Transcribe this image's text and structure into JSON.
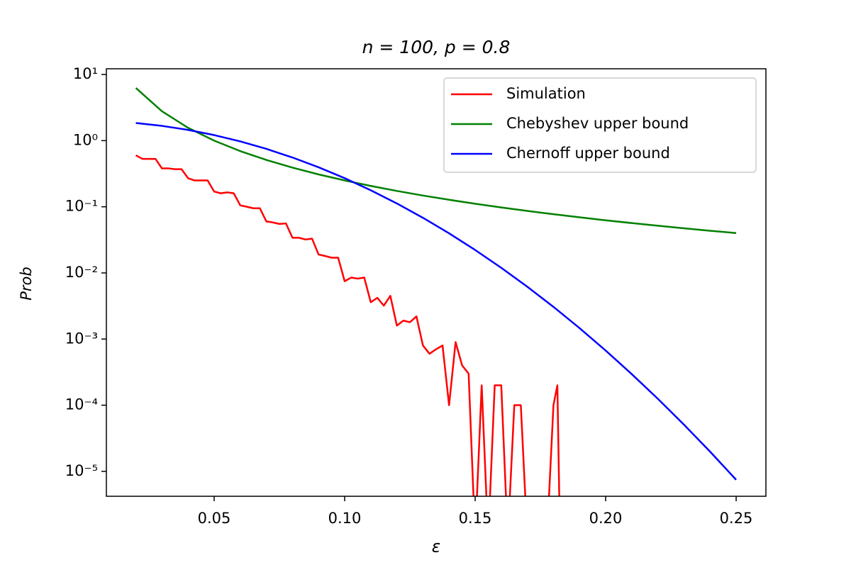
{
  "chart_data": {
    "type": "line",
    "title": "n = 100, p = 0.8",
    "x_label": "ε",
    "y_label": "Prob",
    "log_y": true,
    "legend": "upper right",
    "xlim": [
      0.0087,
      0.2614
    ],
    "xticks": [
      {
        "value": 0.05,
        "label": "0.05"
      },
      {
        "value": 0.1,
        "label": "0.10"
      },
      {
        "value": 0.15,
        "label": "0.15"
      },
      {
        "value": 0.2,
        "label": "0.20"
      },
      {
        "value": 0.25,
        "label": "0.25"
      }
    ],
    "ylim": [
      4.2e-06,
      12.2
    ],
    "yticks": [
      {
        "value": 1e-05,
        "label": "10⁻⁵"
      },
      {
        "value": 0.0001,
        "label": "10⁻⁴"
      },
      {
        "value": 0.001,
        "label": "10⁻³"
      },
      {
        "value": 0.01,
        "label": "10⁻²"
      },
      {
        "value": 0.1,
        "label": "10⁻¹"
      },
      {
        "value": 1,
        "label": "10⁰"
      },
      {
        "value": 10,
        "label": "10¹"
      }
    ],
    "series": [
      {
        "name": "Simulation",
        "color": "#ff0000",
        "x": [
          0.02,
          0.0225,
          0.025,
          0.0275,
          0.03,
          0.0325,
          0.035,
          0.0375,
          0.04,
          0.0425,
          0.045,
          0.0475,
          0.05,
          0.0525,
          0.055,
          0.0575,
          0.06,
          0.0625,
          0.065,
          0.0675,
          0.07,
          0.0725,
          0.075,
          0.0775,
          0.08,
          0.0825,
          0.085,
          0.0875,
          0.09,
          0.0925,
          0.095,
          0.0975,
          0.1,
          0.1025,
          0.105,
          0.1075,
          0.11,
          0.1125,
          0.115,
          0.1175,
          0.12,
          0.1225,
          0.125,
          0.1275,
          0.13,
          0.1325,
          0.135,
          0.1375,
          0.14,
          0.1425,
          0.145,
          0.1475,
          0.15,
          0.1525,
          0.155,
          0.1575,
          0.16,
          0.1625,
          0.165,
          0.1675,
          0.17,
          0.1725,
          0.175,
          0.1775,
          0.18,
          0.1815,
          0.1825
        ],
        "values": [
          0.6,
          0.53,
          0.53,
          0.53,
          0.38,
          0.38,
          0.37,
          0.37,
          0.27,
          0.25,
          0.25,
          0.25,
          0.17,
          0.16,
          0.165,
          0.16,
          0.105,
          0.1,
          0.095,
          0.095,
          0.06,
          0.058,
          0.055,
          0.056,
          0.034,
          0.034,
          0.032,
          0.033,
          0.019,
          0.018,
          0.017,
          0.017,
          0.0075,
          0.0085,
          0.0082,
          0.0085,
          0.0036,
          0.0042,
          0.0032,
          0.0045,
          0.0016,
          0.0019,
          0.0018,
          0.0022,
          0.0008,
          0.0006,
          0.0007,
          0.0008,
          0.0001,
          0.0009,
          0.0004,
          0.0003,
          0,
          0.0002,
          0,
          0.0002,
          0.0002,
          0,
          0.0001,
          0.0001,
          0,
          0,
          0,
          0,
          0.0001,
          0.0002,
          0
        ]
      },
      {
        "name": "Chebyshev upper bound",
        "color": "#008000",
        "x": [
          0.02,
          0.03,
          0.04,
          0.05,
          0.06,
          0.07,
          0.08,
          0.09,
          0.1,
          0.11,
          0.12,
          0.13,
          0.14,
          0.15,
          0.16,
          0.17,
          0.18,
          0.19,
          0.2,
          0.21,
          0.22,
          0.23,
          0.24,
          0.25
        ],
        "values": [
          6.25,
          2.778,
          1.5625,
          1,
          0.6944,
          0.5102,
          0.3906,
          0.3086,
          0.25,
          0.2066,
          0.1736,
          0.1479,
          0.1276,
          0.1111,
          0.09766,
          0.08651,
          0.07716,
          0.06925,
          0.0625,
          0.05669,
          0.05165,
          0.04726,
          0.0434,
          0.04
        ]
      },
      {
        "name": "Chernoff upper bound",
        "color": "#0000ff",
        "x": [
          0.02,
          0.03,
          0.04,
          0.05,
          0.06,
          0.07,
          0.08,
          0.09,
          0.1,
          0.11,
          0.12,
          0.13,
          0.14,
          0.15,
          0.16,
          0.17,
          0.18,
          0.19,
          0.2,
          0.21,
          0.22,
          0.23,
          0.24,
          0.25
        ],
        "values": [
          1.846,
          1.671,
          1.452,
          1.213,
          0.9735,
          0.7507,
          0.556,
          0.3958,
          0.2707,
          0.1778,
          0.1123,
          0.0681,
          0.03969,
          0.02222,
          0.01195,
          0.006178,
          0.003068,
          0.001463,
          0.000671,
          0.0002953,
          0.000125,
          5.08e-05,
          1.99e-05,
          7.45e-06
        ]
      }
    ]
  }
}
